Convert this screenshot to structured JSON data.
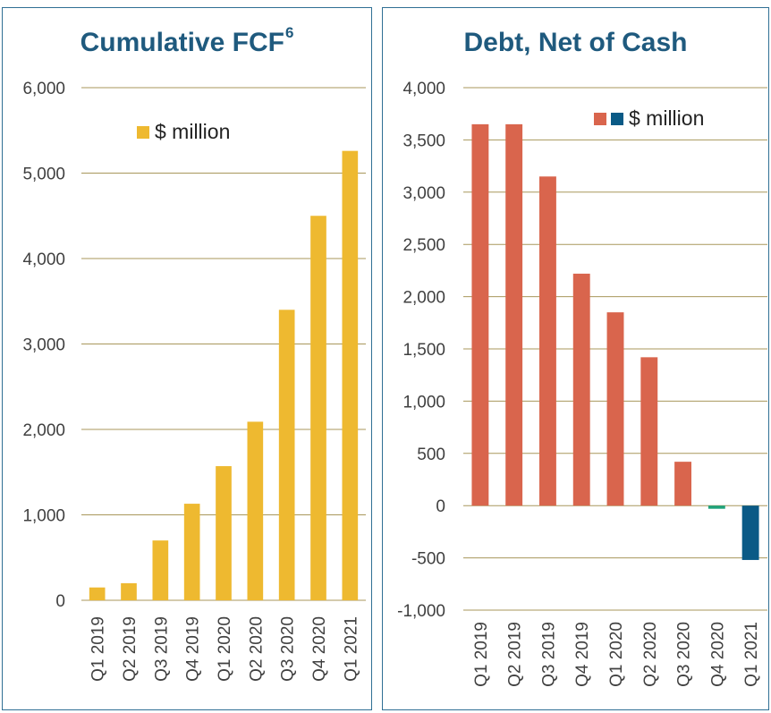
{
  "colors": {
    "fcf_bar": "#eeb930",
    "debt_positive": "#d9654d",
    "debt_negative": "#0a5a86",
    "net_cash_small": "#1fa37a",
    "gridline": "#a8975b",
    "title": "#1f5a7e",
    "axis_text": "#404040",
    "border": "#2f6f94"
  },
  "chart_data": [
    {
      "type": "bar",
      "title": "Cumulative FCF",
      "title_superscript": "6",
      "legend": [
        "$ million"
      ],
      "legend_position": "top-left",
      "categories": [
        "Q1 2019",
        "Q2 2019",
        "Q3 2019",
        "Q4 2019",
        "Q1 2020",
        "Q2 2020",
        "Q3 2020",
        "Q4 2020",
        "Q1 2021"
      ],
      "values": [
        150,
        200,
        700,
        1130,
        1570,
        2090,
        3400,
        4500,
        5260
      ],
      "ylim": [
        0,
        6000
      ],
      "yticks": [
        0,
        1000,
        2000,
        3000,
        4000,
        5000,
        6000
      ],
      "ytick_labels": [
        "0",
        "1,000",
        "2,000",
        "3,000",
        "4,000",
        "5,000",
        "6,000"
      ],
      "grid": true
    },
    {
      "type": "bar",
      "title": "Debt, Net of Cash",
      "legend": [
        "$ million"
      ],
      "legend_position": "top-right",
      "categories": [
        "Q1 2019",
        "Q2 2019",
        "Q3 2019",
        "Q4 2019",
        "Q1 2020",
        "Q2 2020",
        "Q3 2020",
        "Q4 2020",
        "Q1 2021"
      ],
      "values": [
        3650,
        3650,
        3150,
        2220,
        1850,
        1420,
        420,
        -30,
        -520
      ],
      "ylim": [
        -1000,
        4000
      ],
      "yticks": [
        -1000,
        -500,
        0,
        500,
        1000,
        1500,
        2000,
        2500,
        3000,
        3500,
        4000
      ],
      "ytick_labels": [
        "-1,000",
        "-500",
        "0",
        "500",
        "1,000",
        "1,500",
        "2,000",
        "2,500",
        "3,000",
        "3,500",
        "4,000"
      ],
      "grid": true
    }
  ]
}
